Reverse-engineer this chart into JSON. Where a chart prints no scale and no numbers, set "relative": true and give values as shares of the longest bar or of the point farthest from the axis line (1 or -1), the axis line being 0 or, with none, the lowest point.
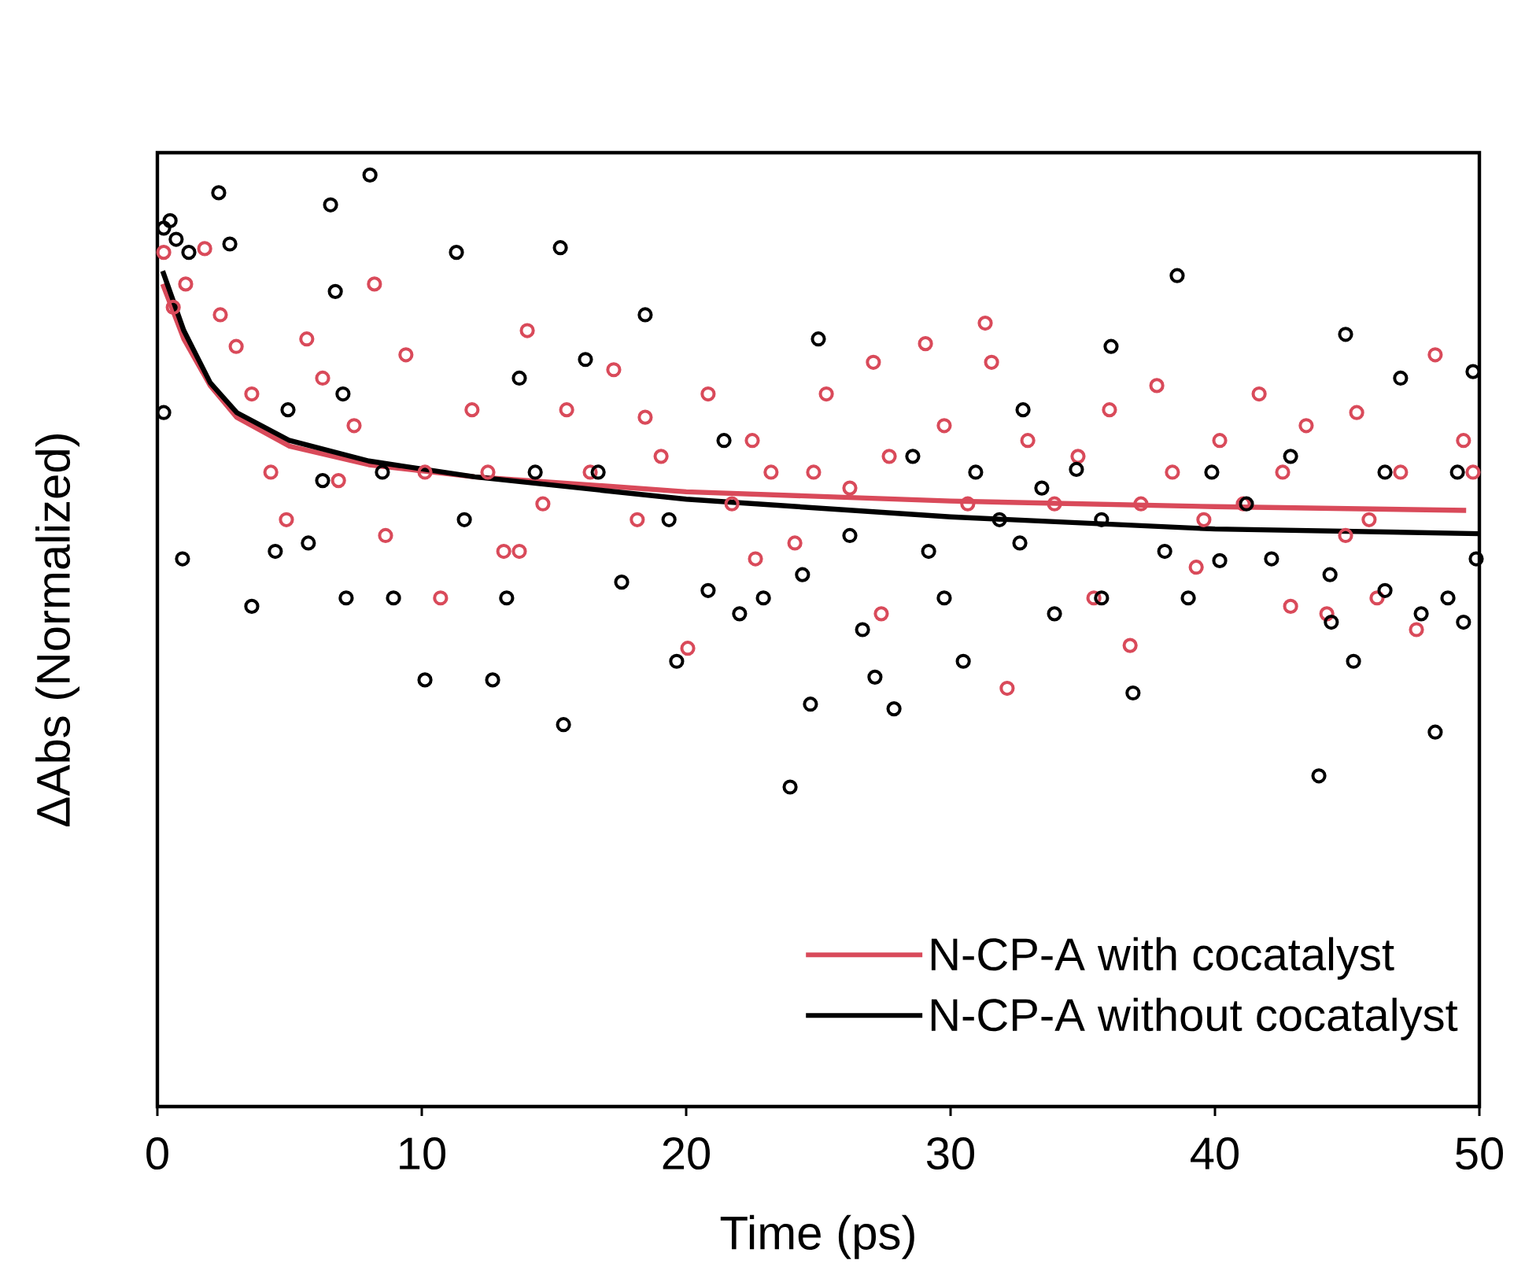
{
  "chart_data": {
    "type": "scatter",
    "relative": true,
    "xlabel": "Time (ps)",
    "ylabel": "ΔAbs (Normalized)",
    "xlim": [
      0,
      50
    ],
    "xticks": [
      0,
      10,
      20,
      30,
      40,
      50
    ],
    "tick_labels": "x",
    "marker": "circle",
    "legend": "bottom right",
    "grid": false,
    "series": [
      {
        "color": "#d94a5a",
        "x": [
          0.24,
          0.6,
          1.07,
          1.79,
          2.38,
          2.98,
          3.57,
          4.29,
          4.88,
          5.65,
          6.25,
          6.85,
          7.44,
          8.21,
          8.63,
          9.4,
          10.12,
          10.71,
          11.9,
          12.5,
          13.1,
          13.99,
          14.58,
          15.48,
          16.37,
          17.26,
          18.15,
          19.05,
          20.06,
          20.83,
          21.73,
          22.5,
          23.21,
          24.11,
          24.82,
          25.3,
          26.19,
          27.08,
          27.68,
          29.05,
          29.76,
          30.65,
          31.55,
          32.14,
          32.92,
          33.93,
          34.82,
          35.42,
          36.01,
          36.79,
          37.2,
          37.8,
          38.39,
          39.29,
          40.18,
          41.07,
          41.67,
          42.56,
          43.45,
          44.23,
          44.94,
          45.36,
          46.13,
          47.02,
          47.62,
          48.33,
          49.4,
          49.76,
          31.31,
          45.83,
          42.86,
          39.58,
          27.38,
          22.62,
          18.45,
          13.69
        ],
        "values": [
          0.917,
          0.858,
          0.883,
          0.921,
          0.85,
          0.816,
          0.765,
          0.681,
          0.63,
          0.824,
          0.782,
          0.672,
          0.731,
          0.883,
          0.613,
          0.807,
          0.681,
          0.546,
          0.748,
          0.681,
          0.596,
          0.833,
          0.647,
          0.748,
          0.681,
          0.791,
          0.63,
          0.698,
          0.492,
          0.765,
          0.647,
          0.715,
          0.681,
          0.605,
          0.681,
          0.765,
          0.664,
          0.799,
          0.698,
          0.819,
          0.731,
          0.647,
          0.799,
          0.449,
          0.715,
          0.647,
          0.698,
          0.546,
          0.748,
          0.495,
          0.647,
          0.774,
          0.681,
          0.579,
          0.715,
          0.647,
          0.765,
          0.681,
          0.731,
          0.529,
          0.613,
          0.745,
          0.546,
          0.681,
          0.512,
          0.807,
          0.715,
          0.681,
          0.841,
          0.63,
          0.537,
          0.63,
          0.529,
          0.588,
          0.74,
          0.596
        ]
      },
      {
        "color": "#000000",
        "x": [
          0.24,
          0.48,
          0.71,
          1.19,
          2.32,
          2.74,
          0.24,
          0.95,
          3.57,
          4.46,
          4.94,
          5.71,
          6.25,
          6.55,
          6.73,
          7.02,
          7.14,
          8.04,
          8.51,
          8.93,
          10.12,
          11.31,
          11.61,
          12.68,
          13.21,
          13.69,
          14.29,
          15.36,
          15.24,
          16.19,
          16.67,
          17.56,
          18.45,
          19.35,
          19.64,
          20.83,
          21.43,
          22.02,
          22.92,
          23.93,
          24.4,
          24.7,
          25.0,
          26.19,
          26.67,
          27.14,
          27.86,
          28.57,
          29.17,
          29.76,
          30.48,
          30.95,
          31.85,
          32.62,
          33.45,
          33.93,
          34.76,
          35.71,
          36.9,
          38.57,
          38.1,
          38.99,
          39.88,
          40.18,
          41.19,
          42.14,
          42.86,
          43.93,
          44.4,
          45.24,
          46.43,
          47.02,
          47.8,
          48.33,
          48.81,
          49.76,
          49.88,
          49.17,
          44.94,
          44.35,
          46.43,
          49.4,
          35.71,
          36.07,
          32.74
        ],
        "values": [
          0.943,
          0.951,
          0.931,
          0.917,
          0.981,
          0.926,
          0.745,
          0.588,
          0.537,
          0.596,
          0.748,
          0.605,
          0.672,
          0.968,
          0.875,
          0.765,
          0.546,
          1.0,
          0.681,
          0.546,
          0.458,
          0.917,
          0.63,
          0.458,
          0.546,
          0.782,
          0.681,
          0.41,
          0.922,
          0.802,
          0.681,
          0.563,
          0.85,
          0.63,
          0.478,
          0.554,
          0.715,
          0.529,
          0.546,
          0.343,
          0.571,
          0.432,
          0.824,
          0.613,
          0.512,
          0.461,
          0.427,
          0.698,
          0.596,
          0.546,
          0.478,
          0.681,
          0.63,
          0.605,
          0.664,
          0.529,
          0.684,
          0.546,
          0.444,
          0.892,
          0.596,
          0.546,
          0.681,
          0.586,
          0.647,
          0.588,
          0.698,
          0.355,
          0.52,
          0.478,
          0.681,
          0.782,
          0.529,
          0.402,
          0.546,
          0.789,
          0.588,
          0.681,
          0.829,
          0.571,
          0.554,
          0.52,
          0.63,
          0.816,
          0.748
        ]
      },
      {
        "type": "line",
        "name": "N-CP-A with cocatalyst",
        "color": "#d94a5a",
        "marker": "none",
        "line_style": "solid",
        "x": [
          0.2,
          1,
          2,
          3,
          5,
          8,
          12,
          20,
          30,
          40,
          49.5
        ],
        "values": [
          0.883,
          0.824,
          0.774,
          0.74,
          0.709,
          0.689,
          0.676,
          0.66,
          0.65,
          0.644,
          0.64
        ]
      },
      {
        "type": "line",
        "name": "N-CP-A without cocatalyst",
        "color": "#000000",
        "marker": "none",
        "line_style": "solid",
        "x": [
          0.2,
          1,
          2,
          3,
          5,
          8,
          12,
          20,
          30,
          40,
          50
        ],
        "values": [
          0.897,
          0.833,
          0.777,
          0.745,
          0.715,
          0.693,
          0.676,
          0.652,
          0.633,
          0.62,
          0.615
        ]
      }
    ]
  }
}
